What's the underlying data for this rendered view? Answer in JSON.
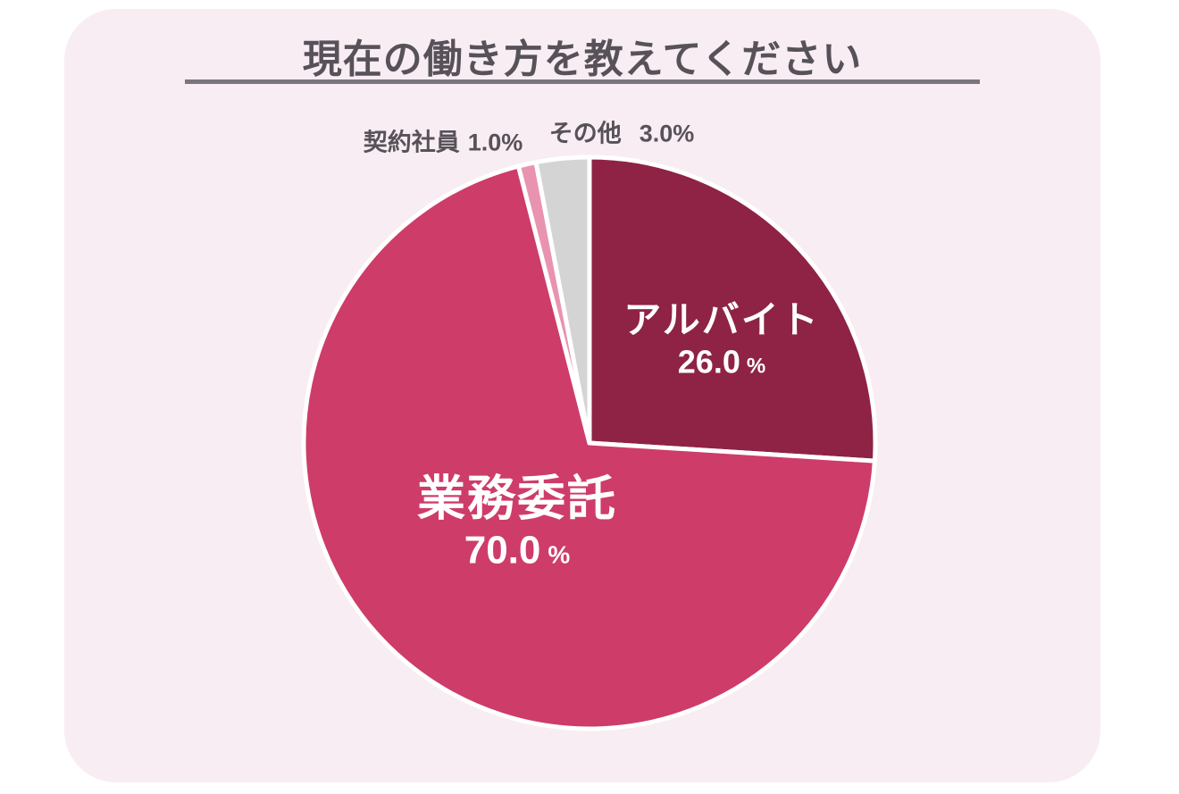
{
  "title": "現在の働き方を教えてください",
  "chart_data": {
    "type": "pie",
    "title": "現在の働き方を教えてください",
    "categories": [
      "アルバイト",
      "業務委託",
      "契約社員",
      "その他"
    ],
    "values": [
      26.0,
      70.0,
      1.0,
      3.0
    ],
    "unit": "%",
    "colors": [
      "#8e2345",
      "#ce3c69",
      "#e993b0",
      "#d5d4d4"
    ],
    "slice_border_color": "#ffffff",
    "start_angle_deg": 0,
    "direction": "clockwise",
    "legend_position": "none",
    "labels": [
      {
        "name": "アルバイト",
        "pct": "26.0",
        "placement": "inside"
      },
      {
        "name": "業務委託",
        "pct": "70.0",
        "placement": "inside"
      },
      {
        "name": "契約社員",
        "pct": "1.0",
        "placement": "outside"
      },
      {
        "name": "その他",
        "pct": "3.0",
        "placement": "outside"
      }
    ]
  },
  "styles": {
    "panel_background": "#f8edf2",
    "page_background": "#ffffff",
    "title_color": "#57525a",
    "underline_color": "#7b757d",
    "outside_label_color": "#57525a",
    "inside_label_color": "#ffffff"
  }
}
